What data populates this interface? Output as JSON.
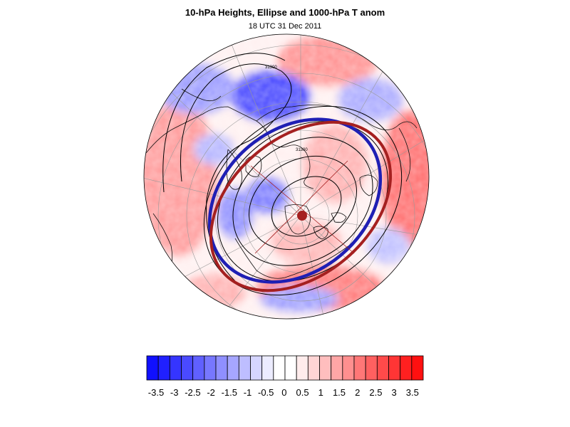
{
  "title": "10-hPa Heights, Ellipse and 1000-hPa T anom",
  "subtitle": "18 UTC 31 Dec 2011",
  "contour_label": "31300",
  "colorbar": {
    "labels": [
      "-3.5",
      "-3",
      "-2.5",
      "-2",
      "-1.5",
      "-1",
      "-0.5",
      "0",
      "0.5",
      "1",
      "1.5",
      "2",
      "2.5",
      "3",
      "3.5"
    ],
    "colors": [
      "#1010ff",
      "#2020ff",
      "#3535ff",
      "#4a4aff",
      "#6060ff",
      "#7777ff",
      "#8f8fff",
      "#a6a6ff",
      "#bebeff",
      "#d5d5ff",
      "#ececff",
      "#ffffff",
      "#ffffff",
      "#ffecec",
      "#ffd5d5",
      "#ffbebe",
      "#ffa6a6",
      "#ff8f8f",
      "#ff7777",
      "#ff6060",
      "#ff4a4a",
      "#ff3535",
      "#ff2020",
      "#ff1010"
    ]
  },
  "colors": {
    "ellipse_observed": "#1f1fb4",
    "ellipse_fit": "#a52020",
    "center_dot": "#a52020",
    "anomaly_warm": "#ff8080",
    "anomaly_cold": "#6b6bff"
  }
}
